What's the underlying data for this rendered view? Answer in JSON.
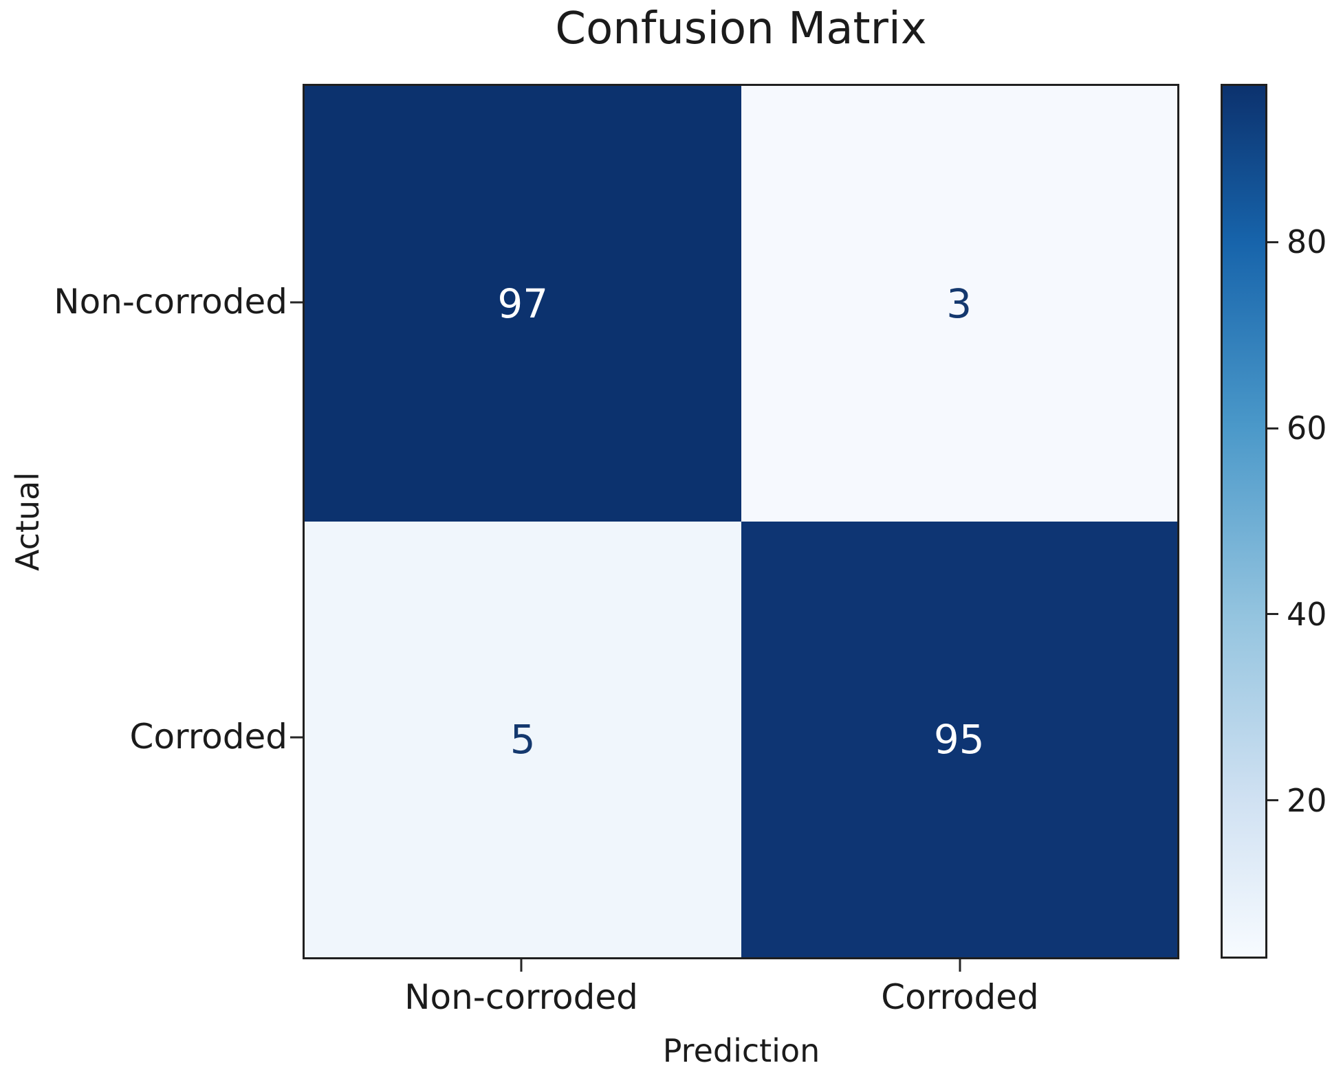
{
  "chart_data": {
    "type": "heatmap",
    "title": "Confusion Matrix",
    "xlabel": "Prediction",
    "ylabel": "Actual",
    "x_categories": [
      "Non-corroded",
      "Corroded"
    ],
    "y_categories": [
      "Non-corroded",
      "Corroded"
    ],
    "matrix": [
      [
        97,
        3
      ],
      [
        5,
        95
      ]
    ],
    "value_range": [
      3,
      97
    ],
    "colorbar_ticks": [
      80,
      60,
      40,
      20
    ],
    "colormap": "Blues",
    "legend_position": "right-colorbar",
    "grid": false,
    "colors": {
      "cell_97": "#0c326e",
      "cell_3": "#f6f9fe",
      "cell_5": "#f0f6fc",
      "cell_95": "#0e3573",
      "value_text_on_dark": "#ffffff",
      "value_text_on_light": "#14386e",
      "axis_text": "#1b1b1b",
      "spine": "#1f1f1f"
    },
    "colorbar_gradient": [
      {
        "color": "#0c326e",
        "pos": 0
      },
      {
        "color": "#1764ab",
        "pos": 18
      },
      {
        "color": "#4a98c9",
        "pos": 39
      },
      {
        "color": "#94c4df",
        "pos": 61
      },
      {
        "color": "#d0e1f2",
        "pos": 82
      },
      {
        "color": "#f7fbff",
        "pos": 100
      }
    ]
  }
}
